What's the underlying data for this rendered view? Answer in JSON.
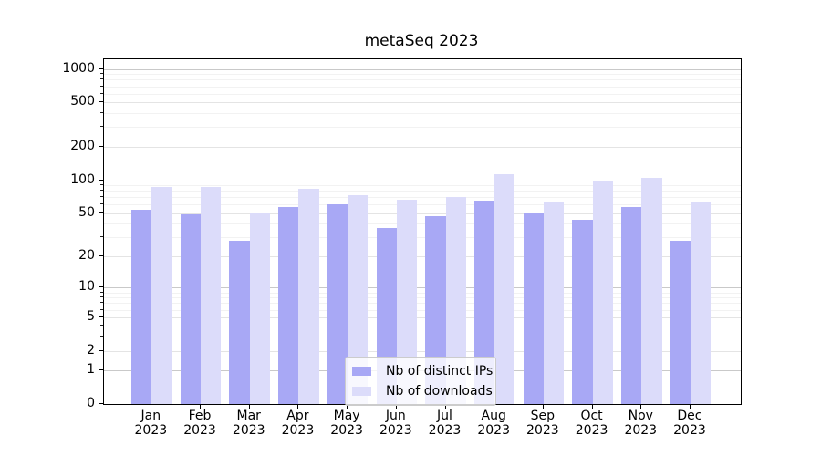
{
  "chart_data": {
    "type": "bar",
    "title": "metaSeq 2023",
    "categories": [
      "Jan",
      "Feb",
      "Mar",
      "Apr",
      "May",
      "Jun",
      "Jul",
      "Aug",
      "Sep",
      "Oct",
      "Nov",
      "Dec"
    ],
    "category_year": "2023",
    "series": [
      {
        "name": "Nb of distinct IPs",
        "color": "#a8a8f5",
        "values": [
          54,
          49,
          28,
          57,
          61,
          37,
          47,
          65,
          50,
          44,
          57,
          28
        ]
      },
      {
        "name": "Nb of downloads",
        "color": "#dcdcfa",
        "values": [
          87,
          87,
          50,
          84,
          73,
          66,
          70,
          113,
          63,
          100,
          105,
          63
        ]
      }
    ],
    "yscale": "log1p",
    "yticks": [
      0,
      1,
      2,
      5,
      10,
      20,
      50,
      100,
      200,
      500,
      1000
    ],
    "ylim": [
      0,
      1220
    ],
    "xlabel": "",
    "ylabel": "",
    "grid": "on",
    "legend_position": "lower center"
  }
}
